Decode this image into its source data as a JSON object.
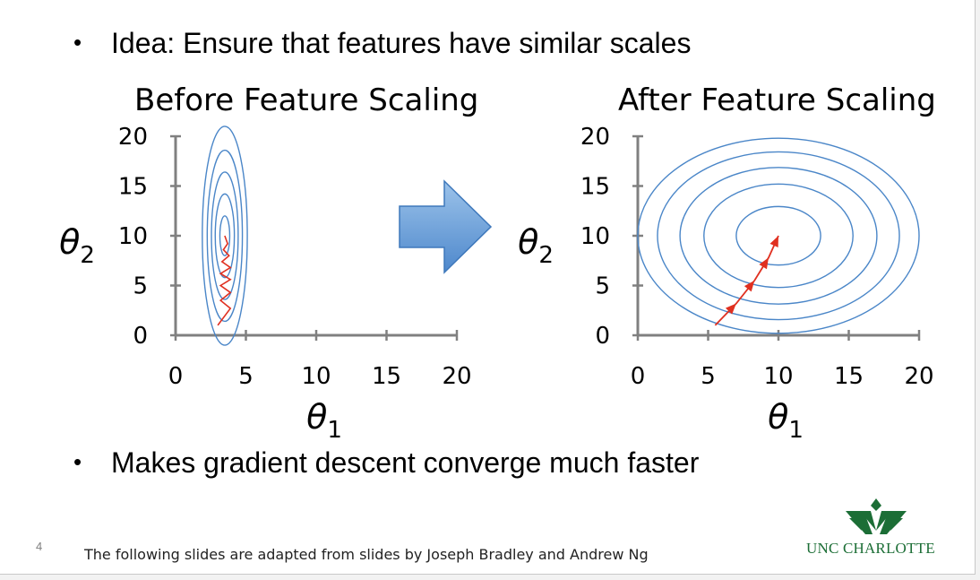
{
  "slide": {
    "number": "4",
    "bullets": [
      "Idea: Ensure that features have similar scales",
      "Makes gradient descent converge much faster"
    ],
    "footer": "The following slides are adapted from slides by Joseph Bradley and Andrew Ng",
    "logo_text": "UNC CHARLOTTE"
  },
  "colors": {
    "contour": "#4a86c8",
    "path": "#e03020",
    "arrow_fill_top": "#9cc3ea",
    "arrow_fill_bottom": "#4e88cc",
    "brand": "#1c6e36",
    "axis": "#808080"
  },
  "chart_data": [
    {
      "type": "line",
      "title": "Before Feature Scaling",
      "xlabel": "θ1",
      "ylabel": "θ2",
      "xticks": [
        "0",
        "5",
        "10",
        "15",
        "20"
      ],
      "yticks": [
        "0",
        "5",
        "10",
        "15",
        "20"
      ],
      "xlim": [
        0,
        20
      ],
      "ylim": [
        0,
        20
      ],
      "contours": {
        "center": [
          3.5,
          10
        ],
        "semi_axes": [
          [
            1.6,
            11
          ],
          [
            1.25,
            8.6
          ],
          [
            0.95,
            6.4
          ],
          [
            0.68,
            4.2
          ],
          [
            0.35,
            2.0
          ]
        ]
      },
      "descent_path": {
        "style": "zigzag",
        "start": [
          3,
          1
        ],
        "points": [
          [
            3,
            1
          ],
          [
            3.9,
            2.7
          ],
          [
            3.2,
            3.5
          ],
          [
            3.9,
            4.3
          ],
          [
            3.2,
            5
          ],
          [
            3.9,
            5.6
          ],
          [
            3.2,
            6.2
          ],
          [
            3.9,
            6.8
          ],
          [
            3.3,
            7.4
          ],
          [
            3.8,
            8
          ],
          [
            3.4,
            8.6
          ],
          [
            3.7,
            9.2
          ],
          [
            3.5,
            10
          ]
        ]
      }
    },
    {
      "type": "line",
      "title": "After Feature Scaling",
      "xlabel": "θ1",
      "ylabel": "θ2",
      "xticks": [
        "0",
        "5",
        "10",
        "15",
        "20"
      ],
      "yticks": [
        "0",
        "5",
        "10",
        "15",
        "20"
      ],
      "xlim": [
        0,
        20
      ],
      "ylim": [
        0,
        20
      ],
      "contours": {
        "center": [
          10,
          10
        ],
        "radii": [
          10,
          8.6,
          7,
          5.3,
          3
        ]
      },
      "descent_path": {
        "style": "arrows",
        "points": [
          [
            5.5,
            1
          ],
          [
            7,
            3.2
          ],
          [
            8.3,
            5.5
          ],
          [
            9.3,
            7.8
          ],
          [
            10,
            10
          ]
        ]
      }
    }
  ]
}
